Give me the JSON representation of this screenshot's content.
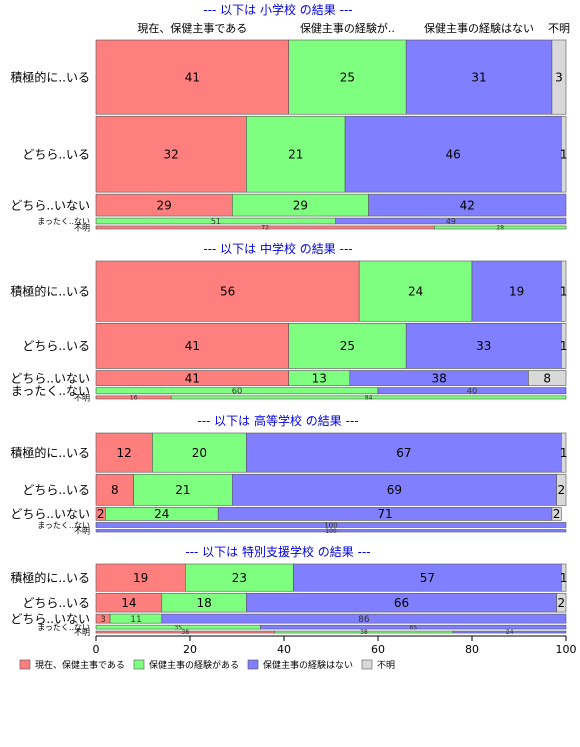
{
  "chart_data": {
    "type": "bar",
    "orientation": "horizontal-stacked-percent",
    "column_headers": [
      "現在、保健主事である",
      "保健主事の経験が..",
      "保健主事の経験はない",
      "不明"
    ],
    "series": [
      {
        "name": "現在、保健主事である",
        "color": "#ff7f7f"
      },
      {
        "name": "保健主事の経験がある",
        "color": "#7fff7f"
      },
      {
        "name": "保健主事の経験はない",
        "color": "#7f7fff"
      },
      {
        "name": "不明",
        "color": "#d9d9d9"
      }
    ],
    "x_ticks": [
      "0",
      "20",
      "40",
      "60",
      "80",
      "100"
    ],
    "xlim": [
      0,
      100
    ],
    "panels": [
      {
        "title": "--- 以下は 小学校 の結果 ---",
        "rows": [
          {
            "label": "積極的に..いる",
            "weight": 0.44,
            "values": [
              41,
              25,
              31,
              3
            ],
            "labels": [
              "41",
              "25",
              "31",
              "3"
            ]
          },
          {
            "label": "どちら..いる",
            "weight": 0.45,
            "values": [
              32,
              21,
              46,
              1
            ],
            "labels": [
              "32",
              "21",
              "46",
              "1"
            ]
          },
          {
            "label": "どちら..いない",
            "weight": 0.13,
            "values": [
              29,
              29,
              42,
              0
            ],
            "labels": [
              "29",
              "29",
              "42",
              ""
            ]
          },
          {
            "label": "まったく..ない",
            "weight": 0.035,
            "values": [
              0,
              51,
              49,
              0
            ],
            "labels": [
              "",
              "51",
              "49",
              ""
            ]
          },
          {
            "label": "不明",
            "weight": 0.018,
            "values": [
              72,
              28,
              0,
              0
            ],
            "labels": [
              "72",
              "28",
              "",
              ""
            ]
          }
        ]
      },
      {
        "title": "--- 以下は 中学校 の結果 ---",
        "rows": [
          {
            "label": "積極的に..いる",
            "weight": 0.48,
            "values": [
              56,
              24,
              19,
              1
            ],
            "labels": [
              "56",
              "24",
              "19",
              "1"
            ]
          },
          {
            "label": "どちら..いる",
            "weight": 0.36,
            "values": [
              41,
              25,
              33,
              1
            ],
            "labels": [
              "41",
              "25",
              "33",
              "1"
            ]
          },
          {
            "label": "どちら..いない",
            "weight": 0.12,
            "values": [
              41,
              13,
              38,
              8
            ],
            "labels": [
              "41",
              "13",
              "38",
              "8"
            ]
          },
          {
            "label": "まったく..ない",
            "weight": 0.05,
            "values": [
              0,
              60,
              40,
              0
            ],
            "labels": [
              "",
              "60",
              "40",
              ""
            ]
          },
          {
            "label": "不明",
            "weight": 0.025,
            "values": [
              16,
              84,
              0,
              0
            ],
            "labels": [
              "16",
              "84",
              "",
              ""
            ]
          }
        ]
      },
      {
        "title": "--- 以下は 高等学校 の結果 ---",
        "rows": [
          {
            "label": "積極的に..いる",
            "weight": 0.39,
            "values": [
              12,
              20,
              67,
              1
            ],
            "labels": [
              "12",
              "20",
              "67",
              "1"
            ]
          },
          {
            "label": "どちら..いる",
            "weight": 0.31,
            "values": [
              8,
              21,
              69,
              2
            ],
            "labels": [
              "8",
              "21",
              "69",
              "2"
            ]
          },
          {
            "label": "どちら..いない",
            "weight": 0.13,
            "values": [
              2,
              24,
              71,
              2
            ],
            "labels": [
              "2",
              "24",
              "71",
              "2"
            ]
          },
          {
            "label": "まったく..ない",
            "weight": 0.05,
            "values": [
              0,
              0,
              100,
              0
            ],
            "labels": [
              "",
              "",
              "100",
              ""
            ]
          },
          {
            "label": "不明",
            "weight": 0.025,
            "values": [
              0,
              0,
              100,
              0
            ],
            "labels": [
              "",
              "",
              "100",
              ""
            ]
          }
        ]
      },
      {
        "title": "--- 以下は 特別支援学校 の結果 ---",
        "rows": [
          {
            "label": "積極的に..いる",
            "weight": 0.42,
            "values": [
              19,
              23,
              57,
              1
            ],
            "labels": [
              "19",
              "23",
              "57",
              "1"
            ]
          },
          {
            "label": "どちら..いる",
            "weight": 0.29,
            "values": [
              14,
              18,
              66,
              2
            ],
            "labels": [
              "14",
              "18",
              "66",
              "2"
            ]
          },
          {
            "label": "どちら..いない",
            "weight": 0.14,
            "values": [
              3,
              11,
              86,
              0
            ],
            "labels": [
              "3",
              "11",
              "86",
              ""
            ]
          },
          {
            "label": "まったく..ない",
            "weight": 0.06,
            "values": [
              0,
              35,
              65,
              0
            ],
            "labels": [
              "",
              "35",
              "65",
              ""
            ]
          },
          {
            "label": "不明",
            "weight": 0.03,
            "values": [
              38,
              38,
              24,
              0
            ],
            "labels": [
              "38",
              "38",
              "24",
              ""
            ]
          }
        ]
      }
    ],
    "legend_position": "bottom-left"
  }
}
